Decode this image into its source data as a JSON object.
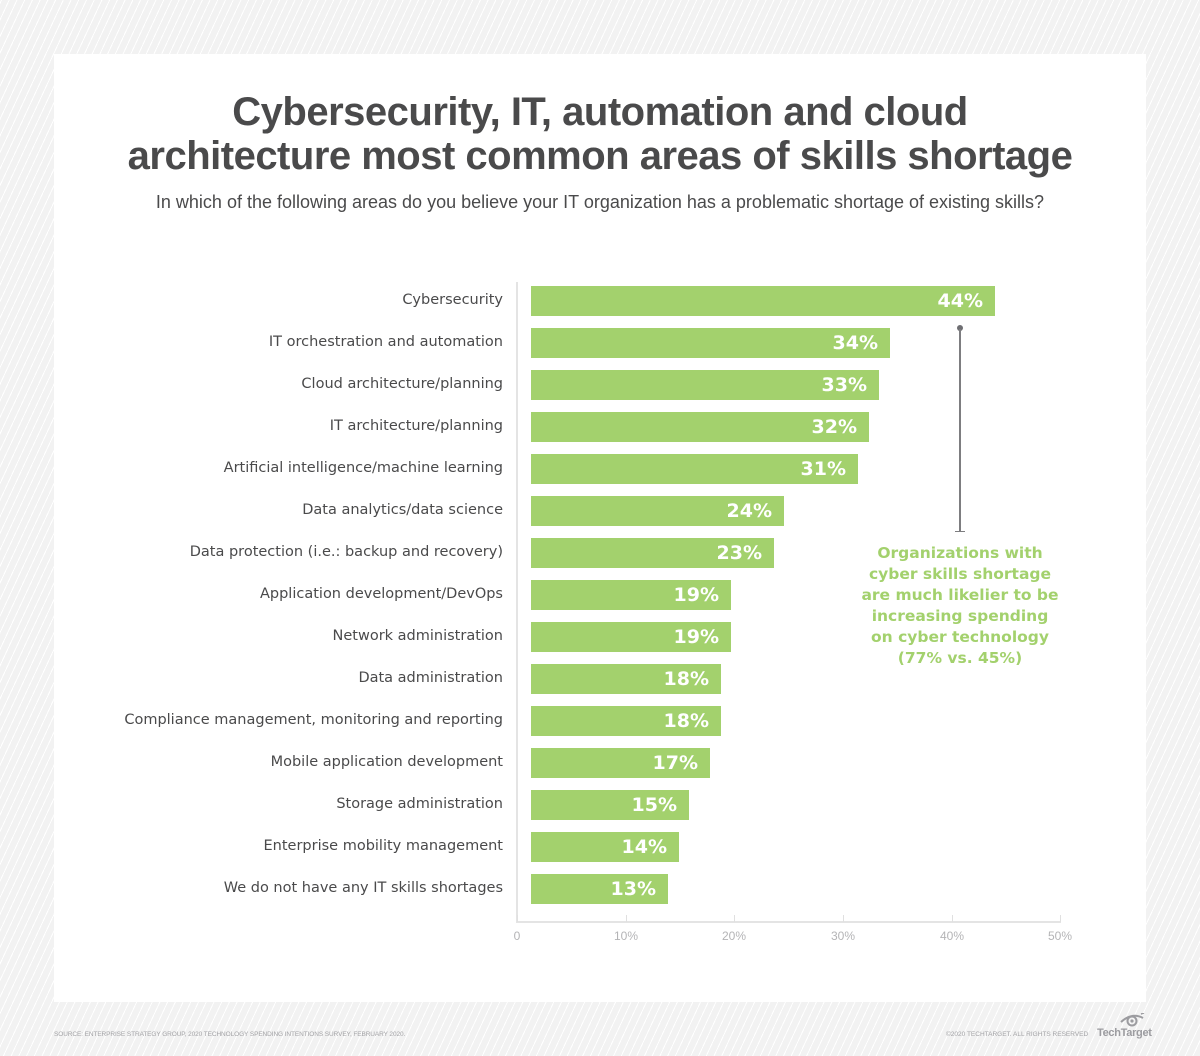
{
  "title_lines": [
    "Cybersecurity, IT, automation and cloud",
    "architecture most common areas of skills shortage"
  ],
  "subtitle": "In which of the following areas do you believe your IT organization has a problematic shortage of existing skills?",
  "colors": {
    "bar": "#a3d16d",
    "title_text": "#4a4a4b",
    "bar_label": "#ffffff",
    "callout_text": "#a3d16d",
    "axis": "#e4e4e4",
    "tick_label": "#b4b4b6"
  },
  "rows": [
    {
      "label": "Cybersecurity",
      "value": 44,
      "value_label": "44%"
    },
    {
      "label": "IT orchestration and automation",
      "value": 34,
      "value_label": "34%"
    },
    {
      "label": "Cloud architecture/planning",
      "value": 33,
      "value_label": "33%"
    },
    {
      "label": "IT architecture/planning",
      "value": 32,
      "value_label": "32%"
    },
    {
      "label": "Artificial intelligence/machine learning",
      "value": 31,
      "value_label": "31%"
    },
    {
      "label": "Data analytics/data science",
      "value": 24,
      "value_label": "24%"
    },
    {
      "label": "Data protection (i.e.: backup and recovery)",
      "value": 23,
      "value_label": "23%"
    },
    {
      "label": "Application development/DevOps",
      "value": 19,
      "value_label": "19%"
    },
    {
      "label": "Network administration",
      "value": 19,
      "value_label": "19%"
    },
    {
      "label": "Data administration",
      "value": 18,
      "value_label": "18%"
    },
    {
      "label": "Compliance management, monitoring and reporting",
      "value": 18,
      "value_label": "18%"
    },
    {
      "label": "Mobile application development",
      "value": 17,
      "value_label": "17%"
    },
    {
      "label": "Storage administration",
      "value": 15,
      "value_label": "15%"
    },
    {
      "label": "Enterprise mobility management",
      "value": 14,
      "value_label": "14%"
    },
    {
      "label": "We do not have any IT skills shortages",
      "value": 13,
      "value_label": "13%"
    }
  ],
  "axis": {
    "ticks": [
      "0",
      "10%",
      "20%",
      "30%",
      "40%",
      "50%"
    ]
  },
  "callout": {
    "lines": [
      "Organizations with",
      "cyber skills shortage",
      "are much likelier to be",
      "increasing spending",
      "on cyber technology",
      "(77% vs. 45%)"
    ]
  },
  "footer": {
    "source": "SOURCE: ENTERPRISE STRATEGY GROUP, 2020 TECHNOLOGY SPENDING INTENTIONS SURVEY, FEBRUARY 2020.",
    "copyright": "©2020 TECHTARGET. ALL RIGHTS RESERVED",
    "logo_text": "TechTarget",
    "logo_icon": "eye-icon"
  },
  "chart_data": {
    "type": "bar",
    "orientation": "horizontal",
    "title": "Cybersecurity, IT, automation and cloud architecture most common areas of skills shortage",
    "subtitle": "In which of the following areas do you believe your IT organization has a problematic shortage of existing skills?",
    "categories": [
      "Cybersecurity",
      "IT orchestration and automation",
      "Cloud architecture/planning",
      "IT architecture/planning",
      "Artificial intelligence/machine learning",
      "Data analytics/data science",
      "Data protection (i.e.: backup and recovery)",
      "Application development/DevOps",
      "Network administration",
      "Data administration",
      "Compliance management, monitoring and reporting",
      "Mobile application development",
      "Storage administration",
      "Enterprise mobility management",
      "We do not have any IT skills shortages"
    ],
    "values": [
      44,
      34,
      33,
      32,
      31,
      24,
      23,
      19,
      19,
      18,
      18,
      17,
      15,
      14,
      13
    ],
    "unit": "%",
    "xlabel": "",
    "ylabel": "",
    "xlim": [
      0,
      50
    ],
    "xticks": [
      "0",
      "10%",
      "20%",
      "30%",
      "40%",
      "50%"
    ],
    "grid": false,
    "legend": null,
    "annotations": [
      "Organizations with cyber skills shortage are much likelier to be increasing spending on cyber technology (77% vs. 45%)"
    ],
    "source": "SOURCE: ENTERPRISE STRATEGY GROUP, 2020 TECHNOLOGY SPENDING INTENTIONS SURVEY, FEBRUARY 2020."
  }
}
